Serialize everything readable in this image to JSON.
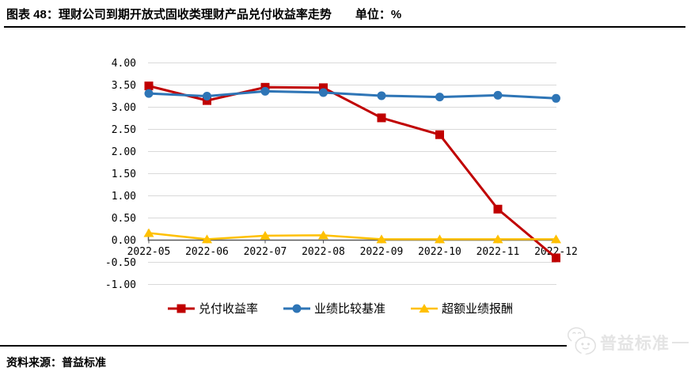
{
  "page": {
    "title": "图表 48：理财公司到期开放式固收类理财产品兑付收益率走势",
    "unit_label": "单位：%",
    "source_label": "资料来源：普益标准",
    "watermark_text": "普益标准",
    "watermark_icon": "wechat-chat-bubbles-icon"
  },
  "colors": {
    "series_red": "#C00000",
    "series_blue": "#2E75B6",
    "series_yellow": "#FFC000",
    "gridline": "#D9D9D9",
    "axis": "#595959",
    "rule": "#000000",
    "watermark_gray": "#E4E4E4"
  },
  "chart_data": {
    "type": "line",
    "title": "理财公司到期开放式固收类理财产品兑付收益率走势",
    "unit": "%",
    "categories": [
      "2022-05",
      "2022-06",
      "2022-07",
      "2022-08",
      "2022-09",
      "2022-10",
      "2022-11",
      "2022-12"
    ],
    "series": [
      {
        "name": "兑付收益率",
        "slug": "redemption-yield",
        "color": "#C00000",
        "marker": "square",
        "line_width": 3,
        "values": [
          3.48,
          3.15,
          3.45,
          3.44,
          2.76,
          2.38,
          0.7,
          -0.4
        ]
      },
      {
        "name": "业绩比较基准",
        "slug": "performance-benchmark",
        "color": "#2E75B6",
        "marker": "circle",
        "line_width": 3,
        "values": [
          3.31,
          3.25,
          3.36,
          3.33,
          3.26,
          3.23,
          3.27,
          3.2
        ]
      },
      {
        "name": "超额业绩报酬",
        "slug": "excess-performance-fee",
        "color": "#FFC000",
        "marker": "triangle",
        "line_width": 2.5,
        "values": [
          0.16,
          0.02,
          0.1,
          0.11,
          0.02,
          0.02,
          0.02,
          0.02
        ]
      }
    ],
    "ylim": [
      -1.0,
      4.0
    ],
    "ytick_step": 0.5,
    "ytick_labels": [
      "4.00",
      "3.50",
      "3.00",
      "2.50",
      "2.00",
      "1.50",
      "1.00",
      "0.50",
      "0.00",
      "-0.50",
      "-1.00"
    ],
    "grid": true,
    "legend_position": "bottom"
  }
}
